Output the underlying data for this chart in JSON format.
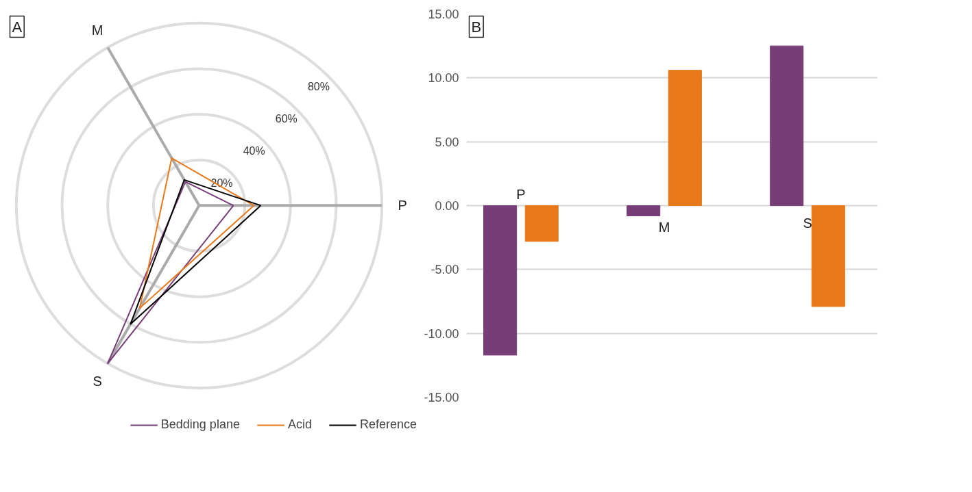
{
  "chart_data": [
    {
      "type": "radar",
      "title": "A",
      "categories": [
        "P",
        "S",
        "M"
      ],
      "ylim": [
        0,
        80
      ],
      "yticks": [
        {
          "value": 20,
          "label": "20%"
        },
        {
          "value": 40,
          "label": "40%"
        },
        {
          "value": 60,
          "label": "60%"
        },
        {
          "value": 80,
          "label": "80%"
        }
      ],
      "legend": "bottom",
      "series": [
        {
          "name": "Bedding plane",
          "color": "#773d77",
          "values": [
            15,
            80,
            12
          ]
        },
        {
          "name": "Acid",
          "color": "#e87819",
          "values": [
            24,
            52,
            24
          ]
        },
        {
          "name": "Reference",
          "color": "#000000",
          "values": [
            27,
            60,
            13
          ]
        }
      ]
    },
    {
      "type": "bar",
      "title": "B",
      "categories": [
        "P",
        "M",
        "S"
      ],
      "ylim": [
        -15,
        15
      ],
      "yticks": [
        {
          "value": -15,
          "label": "-15.00"
        },
        {
          "value": -10,
          "label": "-10.00"
        },
        {
          "value": -5,
          "label": "-5.00"
        },
        {
          "value": 0,
          "label": "0.00"
        },
        {
          "value": 5,
          "label": "5.00"
        },
        {
          "value": 10,
          "label": "10.00"
        },
        {
          "value": 15,
          "label": "15.00"
        }
      ],
      "grid": "y",
      "series": [
        {
          "color": "#773d77",
          "values": [
            -11.7,
            -0.8,
            12.5
          ]
        },
        {
          "color": "#e87819",
          "values": [
            -2.8,
            10.6,
            -7.9
          ]
        }
      ]
    }
  ]
}
